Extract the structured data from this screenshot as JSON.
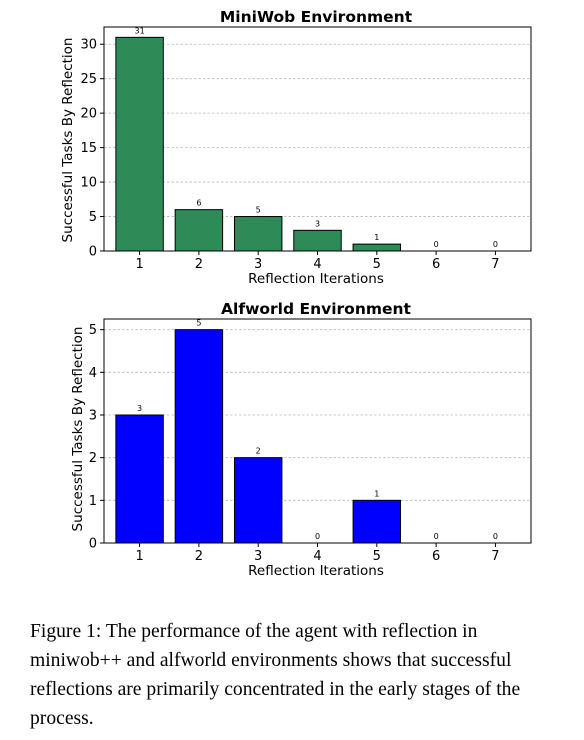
{
  "chart_data": [
    {
      "type": "bar",
      "title": "MiniWob Environment",
      "xlabel": "Reflection Iterations",
      "ylabel": "Successful Tasks By Reflection",
      "categories": [
        "1",
        "2",
        "3",
        "4",
        "5",
        "6",
        "7"
      ],
      "values": [
        31,
        6,
        5,
        3,
        1,
        0,
        0
      ],
      "yticks": [
        0,
        5,
        10,
        15,
        20,
        25,
        30
      ],
      "ylim": [
        0,
        32.5
      ],
      "color": "#2e8b57",
      "grid": "horizontal dashed"
    },
    {
      "type": "bar",
      "title": "Alfworld Environment",
      "xlabel": "Reflection Iterations",
      "ylabel": "Successful Tasks By Reflection",
      "categories": [
        "1",
        "2",
        "3",
        "4",
        "5",
        "6",
        "7"
      ],
      "values": [
        3,
        5,
        2,
        0,
        1,
        0,
        0
      ],
      "yticks": [
        0,
        1,
        2,
        3,
        4,
        5
      ],
      "ylim": [
        0,
        5.25
      ],
      "color": "#0000ff",
      "grid": "horizontal dashed"
    }
  ],
  "caption": "Figure 1: The performance of the agent with reflection in miniwob++ and alfworld environments shows that successful reflections are primarily concentrated in the early stages of the process."
}
